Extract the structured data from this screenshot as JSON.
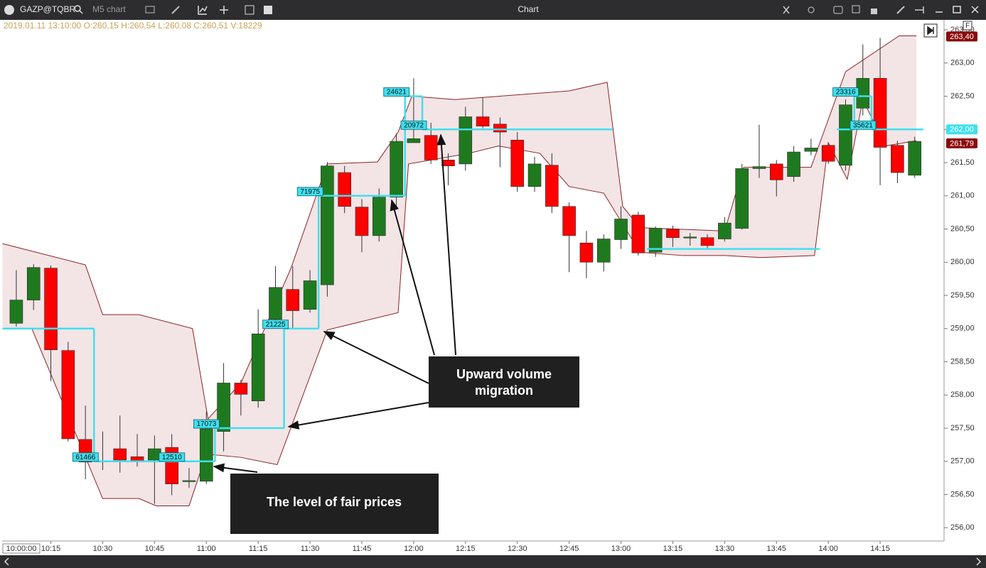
{
  "toolbar": {
    "symbol": "GAZP@TQBR",
    "chart_name": "M5 chart",
    "window_title": "Chart"
  },
  "chart_data": {
    "type": "candlestick",
    "ohlc_header": "2019.01.11 13:10:00 O:260,15 H:260,54 L:260,08 C:260,51 V:18229",
    "candles": {
      "open": [
        259.08,
        259.43,
        259.91,
        258.67,
        257.33,
        256.99,
        257.19,
        257.07,
        257.02,
        257.21,
        256.7,
        256.7,
        257.45,
        258.18,
        257.91,
        259.14,
        259.59,
        259.29,
        259.66,
        261.35,
        260.83,
        260.4,
        260.98,
        261.8,
        261.91,
        261.54,
        261.48,
        262.19,
        262.08,
        261.84,
        261.14,
        261.46,
        260.84,
        260.29,
        260.0,
        260.34,
        260.71,
        260.15,
        260.5,
        260.37,
        260.37,
        260.35,
        260.51,
        261.41,
        261.48,
        261.29,
        261.67,
        261.76,
        261.46,
        262.32,
        262.77,
        261.76,
        261.31
      ],
      "high": [
        259.88,
        259.97,
        259.95,
        258.8,
        257.84,
        257.45,
        257.69,
        257.41,
        257.39,
        257.41,
        256.9,
        257.75,
        258.48,
        258.23,
        259.29,
        259.94,
        259.94,
        259.88,
        261.51,
        261.45,
        260.95,
        261.11,
        261.94,
        262.77,
        262.1,
        261.64,
        262.34,
        262.48,
        262.18,
        261.96,
        261.59,
        261.64,
        260.9,
        260.47,
        260.42,
        260.84,
        260.76,
        260.54,
        260.55,
        260.44,
        260.42,
        260.68,
        261.48,
        262.07,
        261.54,
        261.75,
        261.86,
        261.8,
        262.45,
        263.28,
        263.38,
        261.83,
        261.89
      ],
      "low": [
        259.03,
        259.28,
        258.21,
        257.3,
        256.73,
        256.87,
        256.83,
        256.92,
        256.36,
        256.49,
        256.6,
        256.66,
        257.15,
        257.69,
        257.81,
        259.01,
        259.01,
        259.24,
        259.48,
        260.74,
        260.15,
        260.31,
        260.79,
        261.8,
        261.48,
        261.16,
        261.38,
        262.02,
        261.43,
        261.06,
        261.06,
        260.74,
        259.85,
        259.76,
        259.86,
        260.2,
        260.1,
        260.08,
        260.23,
        260.25,
        260.2,
        260.31,
        260.49,
        261.27,
        260.99,
        261.21,
        261.61,
        261.48,
        261.38,
        262.21,
        261.16,
        261.19,
        261.27
      ],
      "close": [
        259.43,
        259.92,
        258.68,
        257.34,
        256.99,
        257.01,
        257.02,
        257.0,
        257.19,
        256.66,
        256.71,
        257.49,
        258.18,
        258.01,
        258.92,
        259.62,
        259.27,
        259.72,
        261.45,
        260.84,
        260.4,
        260.98,
        261.82,
        261.86,
        261.54,
        261.45,
        262.19,
        262.05,
        261.96,
        261.14,
        261.48,
        260.84,
        260.4,
        260.0,
        260.35,
        260.65,
        260.14,
        260.51,
        260.37,
        260.38,
        260.25,
        260.59,
        261.41,
        261.44,
        261.24,
        261.66,
        261.72,
        261.52,
        262.37,
        262.77,
        261.73,
        261.35,
        261.82
      ]
    },
    "up_color": "#1f7a1f",
    "down_color": "#ff0000",
    "xlim": [
      -0.82,
      53.7
    ],
    "xticks": [
      {
        "value": 2,
        "label": "10:15"
      },
      {
        "value": 5,
        "label": "10:30"
      },
      {
        "value": 8,
        "label": "10:45"
      },
      {
        "value": 11,
        "label": "11:00"
      },
      {
        "value": 14,
        "label": "11:15"
      },
      {
        "value": 17,
        "label": "11:30"
      },
      {
        "value": 20,
        "label": "11:45"
      },
      {
        "value": 23,
        "label": "12:00"
      },
      {
        "value": 26,
        "label": "12:15"
      },
      {
        "value": 29,
        "label": "12:30"
      },
      {
        "value": 32,
        "label": "12:45"
      },
      {
        "value": 35,
        "label": "13:00"
      },
      {
        "value": 38,
        "label": "13:15"
      },
      {
        "value": 41,
        "label": "13:30"
      },
      {
        "value": 44,
        "label": "13:45"
      },
      {
        "value": 47,
        "label": "14:00"
      },
      {
        "value": 50,
        "label": "14:15"
      }
    ],
    "ylim": [
      255.8,
      263.65
    ],
    "yticks": [
      {
        "value": 256,
        "label": "256,00"
      },
      {
        "value": 256.5,
        "label": "256,50"
      },
      {
        "value": 257,
        "label": "257,00"
      },
      {
        "value": 257.5,
        "label": "257,50"
      },
      {
        "value": 258,
        "label": "258,00"
      },
      {
        "value": 258.5,
        "label": "258,50"
      },
      {
        "value": 259,
        "label": "259,00"
      },
      {
        "value": 259.5,
        "label": "259,50"
      },
      {
        "value": 260,
        "label": "260,00"
      },
      {
        "value": 260.5,
        "label": "260,50"
      },
      {
        "value": 261,
        "label": "261,00"
      },
      {
        "value": 261.5,
        "label": "261,50"
      },
      {
        "value": 262,
        "label": "262,00"
      },
      {
        "value": 262.5,
        "label": "262,50"
      },
      {
        "value": 263,
        "label": "263,00"
      },
      {
        "value": 263.5,
        "label": "263,50"
      }
    ],
    "grid": false,
    "value_area": {
      "fill": "#f1dfe2",
      "stroke": "#8b2323",
      "upper": {
        "x": [
          -0.8,
          4,
          5,
          7.1,
          10.2,
          11.1,
          13,
          15.9,
          18,
          20.9,
          22.1,
          22.9,
          25.4,
          32,
          34.2,
          35.1,
          36.1,
          41,
          42.1,
          46,
          48,
          51.1,
          52.1
        ],
        "values": [
          260.28,
          259.96,
          259.21,
          259.21,
          259.0,
          257.64,
          258.18,
          259.91,
          261.48,
          261.51,
          261.96,
          262.5,
          262.45,
          262.58,
          262.71,
          260.84,
          260.52,
          260.47,
          261.43,
          261.43,
          262.87,
          263.41,
          263.41
        ]
      },
      "lower": {
        "x": [
          -0.8,
          0.9,
          5,
          7.1,
          8.1,
          10,
          11,
          13,
          15.1,
          18,
          22.1,
          22.7,
          26.2,
          27.9,
          30.3,
          32,
          34,
          36.1,
          38.6,
          41,
          43.1,
          46.2,
          47,
          48.1,
          49,
          50.3,
          52.1
        ],
        "values": [
          259.0,
          259.0,
          256.44,
          256.44,
          256.33,
          256.33,
          257.11,
          257.06,
          256.95,
          258.98,
          259.24,
          261.48,
          261.64,
          261.75,
          261.64,
          261.14,
          261.04,
          260.15,
          260.1,
          260.1,
          260.07,
          260.1,
          261.8,
          261.25,
          262.45,
          261.75,
          261.83
        ]
      }
    },
    "poc": {
      "color": "#3fe0ee",
      "segments": [
        {
          "start": -0.8,
          "end": 4.5,
          "price": 259.0
        },
        {
          "start": 4.5,
          "end": 9.5,
          "price": 257.0,
          "volume": 61466
        },
        {
          "start": 9.5,
          "end": 11.5,
          "price": 257.0,
          "volume": 12510
        },
        {
          "start": 11.5,
          "end": 15.5,
          "price": 257.5,
          "volume": 17073
        },
        {
          "start": 15.5,
          "end": 17.5,
          "price": 259.0,
          "volume": 21225
        },
        {
          "start": 17.5,
          "end": 22.5,
          "price": 261.0,
          "volume": 71975
        },
        {
          "start": 22.5,
          "end": 23.5,
          "price": 262.5,
          "volume": 24621
        },
        {
          "start": 23.5,
          "end": 34.5,
          "price": 262.0,
          "volume": 20972
        },
        {
          "start": 36.5,
          "end": 46.5,
          "price": 260.2
        },
        {
          "start": 47.5,
          "end": 48.5,
          "price": 262.0
        },
        {
          "start": 48.5,
          "end": 49.5,
          "price": 262.5,
          "volume": 23316
        },
        {
          "start": 49.5,
          "end": 52.5,
          "price": 262.0,
          "volume": 35621
        }
      ]
    },
    "price_markers": [
      {
        "value": 263.4,
        "label": "263,40",
        "color": "#8b0a0a"
      },
      {
        "value": 262.0,
        "label": "262,00",
        "color": "#3fe0ee"
      },
      {
        "value": 261.79,
        "label": "261,79",
        "color": "#8b0a0a"
      }
    ],
    "cursor_time": "10:00:00",
    "scale_button": "F",
    "annotations": [
      {
        "lines": [
          "Upward volume",
          "migration"
        ]
      },
      {
        "lines": [
          "The level of fair prices"
        ]
      }
    ]
  }
}
